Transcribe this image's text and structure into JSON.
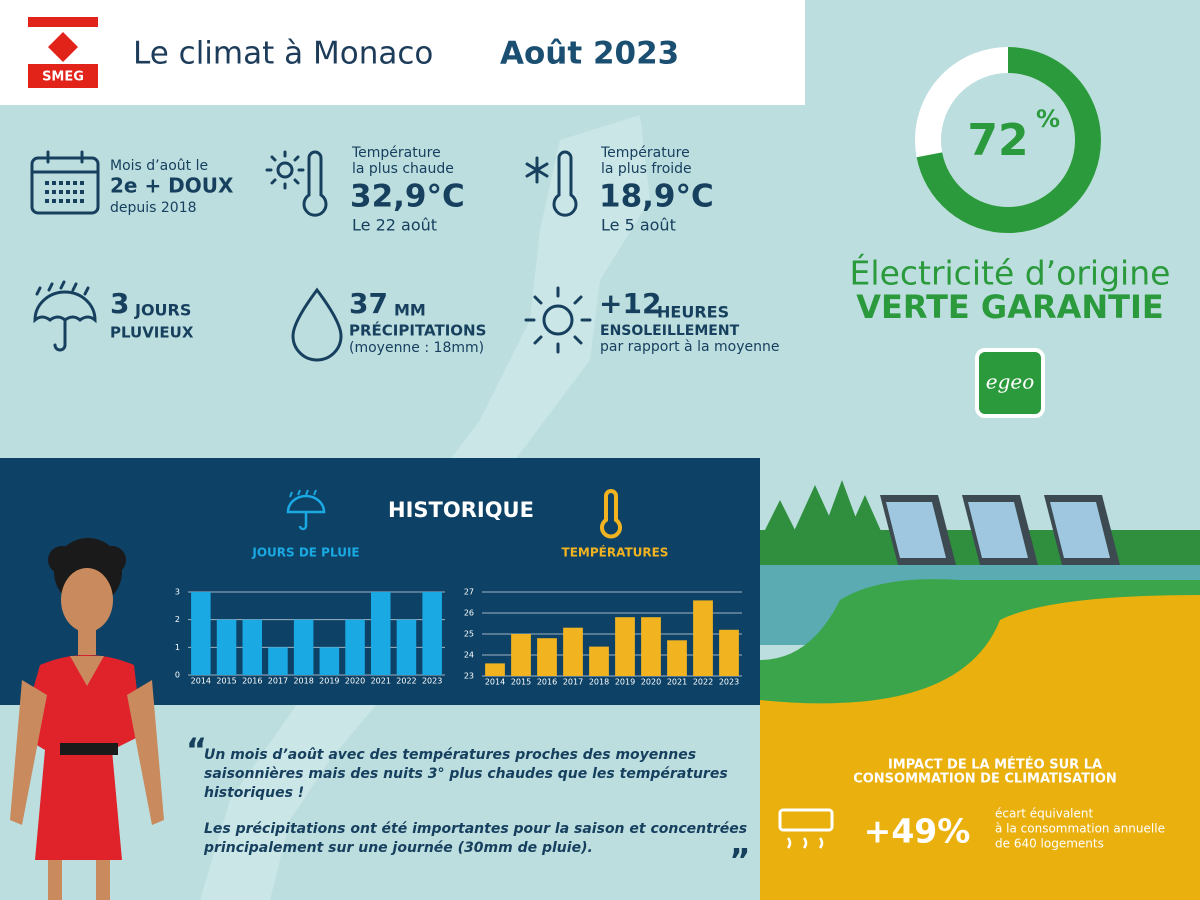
{
  "header": {
    "logo": "SMEG",
    "title": "Le climat à Monaco",
    "title_emph": "Août 2023"
  },
  "stats": {
    "mild": {
      "label": "Mois d’août le",
      "value": "2e + DOUX",
      "note": "depuis 2018"
    },
    "hot": {
      "label": [
        "Température",
        "la plus chaude"
      ],
      "value": "32,9°C",
      "note": "Le 22 août"
    },
    "cold": {
      "label": [
        "Température",
        "la plus froide"
      ],
      "value": "18,9°C",
      "note": "Le 5 août"
    },
    "rain": {
      "value": "3",
      "unit": "JOURS",
      "note": "PLUVIEUX"
    },
    "precip": {
      "value": "37",
      "unit": "MM",
      "label": "PRÉCIPITATIONS",
      "note": "(moyenne : 18mm)"
    },
    "sun": {
      "value": "+12",
      "unit": "HEURES",
      "label": "ENSOLEILLEMENT",
      "note": "par rapport à la moyenne"
    }
  },
  "green": {
    "value": 72,
    "unit": "%",
    "line1": "Électricité d’origine",
    "line2": "VERTE GARANTIE",
    "logo": "egeo"
  },
  "history_title": "HISTORIQUE",
  "chart_data": [
    {
      "type": "bar",
      "title": "JOURS DE PLUIE",
      "color": "#1aa9e2",
      "categories": [
        "2014",
        "2015",
        "2016",
        "2017",
        "2018",
        "2019",
        "2020",
        "2021",
        "2022",
        "2023"
      ],
      "values": [
        3,
        2,
        2,
        1,
        2,
        1,
        2,
        3,
        2,
        3
      ],
      "ylim": [
        0,
        3
      ],
      "yticks": [
        0,
        1,
        2,
        3
      ],
      "grid": true
    },
    {
      "type": "bar",
      "title": "TEMPÉRATURES",
      "color": "#f2b320",
      "categories": [
        "2014",
        "2015",
        "2016",
        "2017",
        "2018",
        "2019",
        "2020",
        "2021",
        "2022",
        "2023"
      ],
      "values": [
        23.6,
        25.0,
        24.8,
        25.3,
        24.4,
        25.8,
        25.8,
        24.7,
        26.6,
        25.2
      ],
      "ylim": [
        23,
        27
      ],
      "yticks": [
        23,
        24,
        25,
        26,
        27
      ],
      "grid": true
    }
  ],
  "quote": {
    "open": "“",
    "close": "„",
    "p1": [
      "Un mois d’août avec des températures proches des moyennes",
      "saisonnières mais des nuits 3° plus chaudes que les températures",
      "historiques !"
    ],
    "p2": [
      "Les précipitations ont été importantes pour la saison et concentrées",
      "principalement sur une journée (30mm de pluie)."
    ]
  },
  "impact": {
    "title": [
      "IMPACT DE LA MÉTÉO SUR LA",
      "CONSOMMATION DE CLIMATISATION"
    ],
    "value": "+49%",
    "note": [
      "écart équivalent",
      "à la consommation annuelle",
      "de 640 logements"
    ]
  }
}
